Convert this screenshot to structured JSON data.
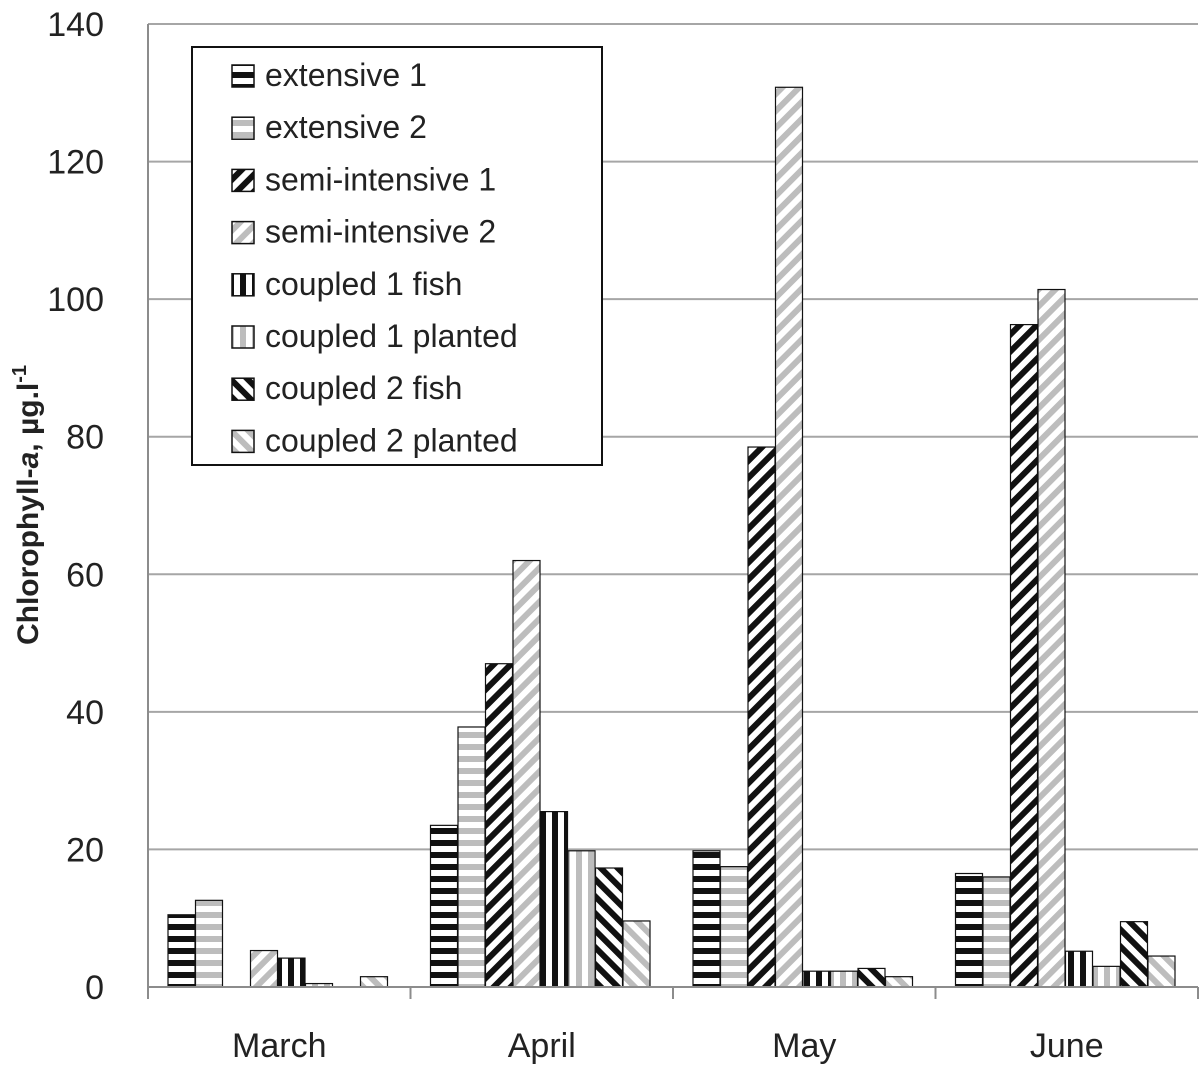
{
  "chart_data": {
    "type": "bar",
    "title": "",
    "xlabel": "",
    "ylabel": {
      "prefix": "Chlorophyll-",
      "italic": "a",
      "unit": ", µg.l",
      "superscript": "-1"
    },
    "ylim": [
      0,
      140
    ],
    "yticks": [
      0,
      20,
      40,
      60,
      80,
      100,
      120,
      140
    ],
    "grid": "horizontal",
    "legend_position": "top-left",
    "categories": [
      "March",
      "April",
      "May",
      "June"
    ],
    "series": [
      {
        "name": "extensive 1",
        "pattern": "hstripe-dark",
        "values": [
          10.5,
          23.5,
          19.8,
          16.5
        ]
      },
      {
        "name": "extensive 2",
        "pattern": "hstripe-light",
        "values": [
          12.6,
          37.8,
          17.5,
          16.0
        ]
      },
      {
        "name": "semi-intensive 1",
        "pattern": "diag-dark",
        "values": [
          0,
          47.0,
          78.5,
          96.3
        ]
      },
      {
        "name": "semi-intensive 2",
        "pattern": "diag-light",
        "values": [
          5.3,
          62.0,
          130.8,
          101.4
        ]
      },
      {
        "name": "coupled 1 fish",
        "pattern": "vstripe-dark",
        "values": [
          4.2,
          25.5,
          2.3,
          5.2
        ]
      },
      {
        "name": "coupled 1 planted",
        "pattern": "vstripe-light",
        "values": [
          0.5,
          19.8,
          2.3,
          3.0
        ]
      },
      {
        "name": "coupled 2 fish",
        "pattern": "rdiag-dark",
        "values": [
          0,
          17.3,
          2.7,
          9.5
        ]
      },
      {
        "name": "coupled 2 planted",
        "pattern": "rdiag-light",
        "values": [
          1.5,
          9.6,
          1.5,
          4.5
        ]
      }
    ]
  }
}
